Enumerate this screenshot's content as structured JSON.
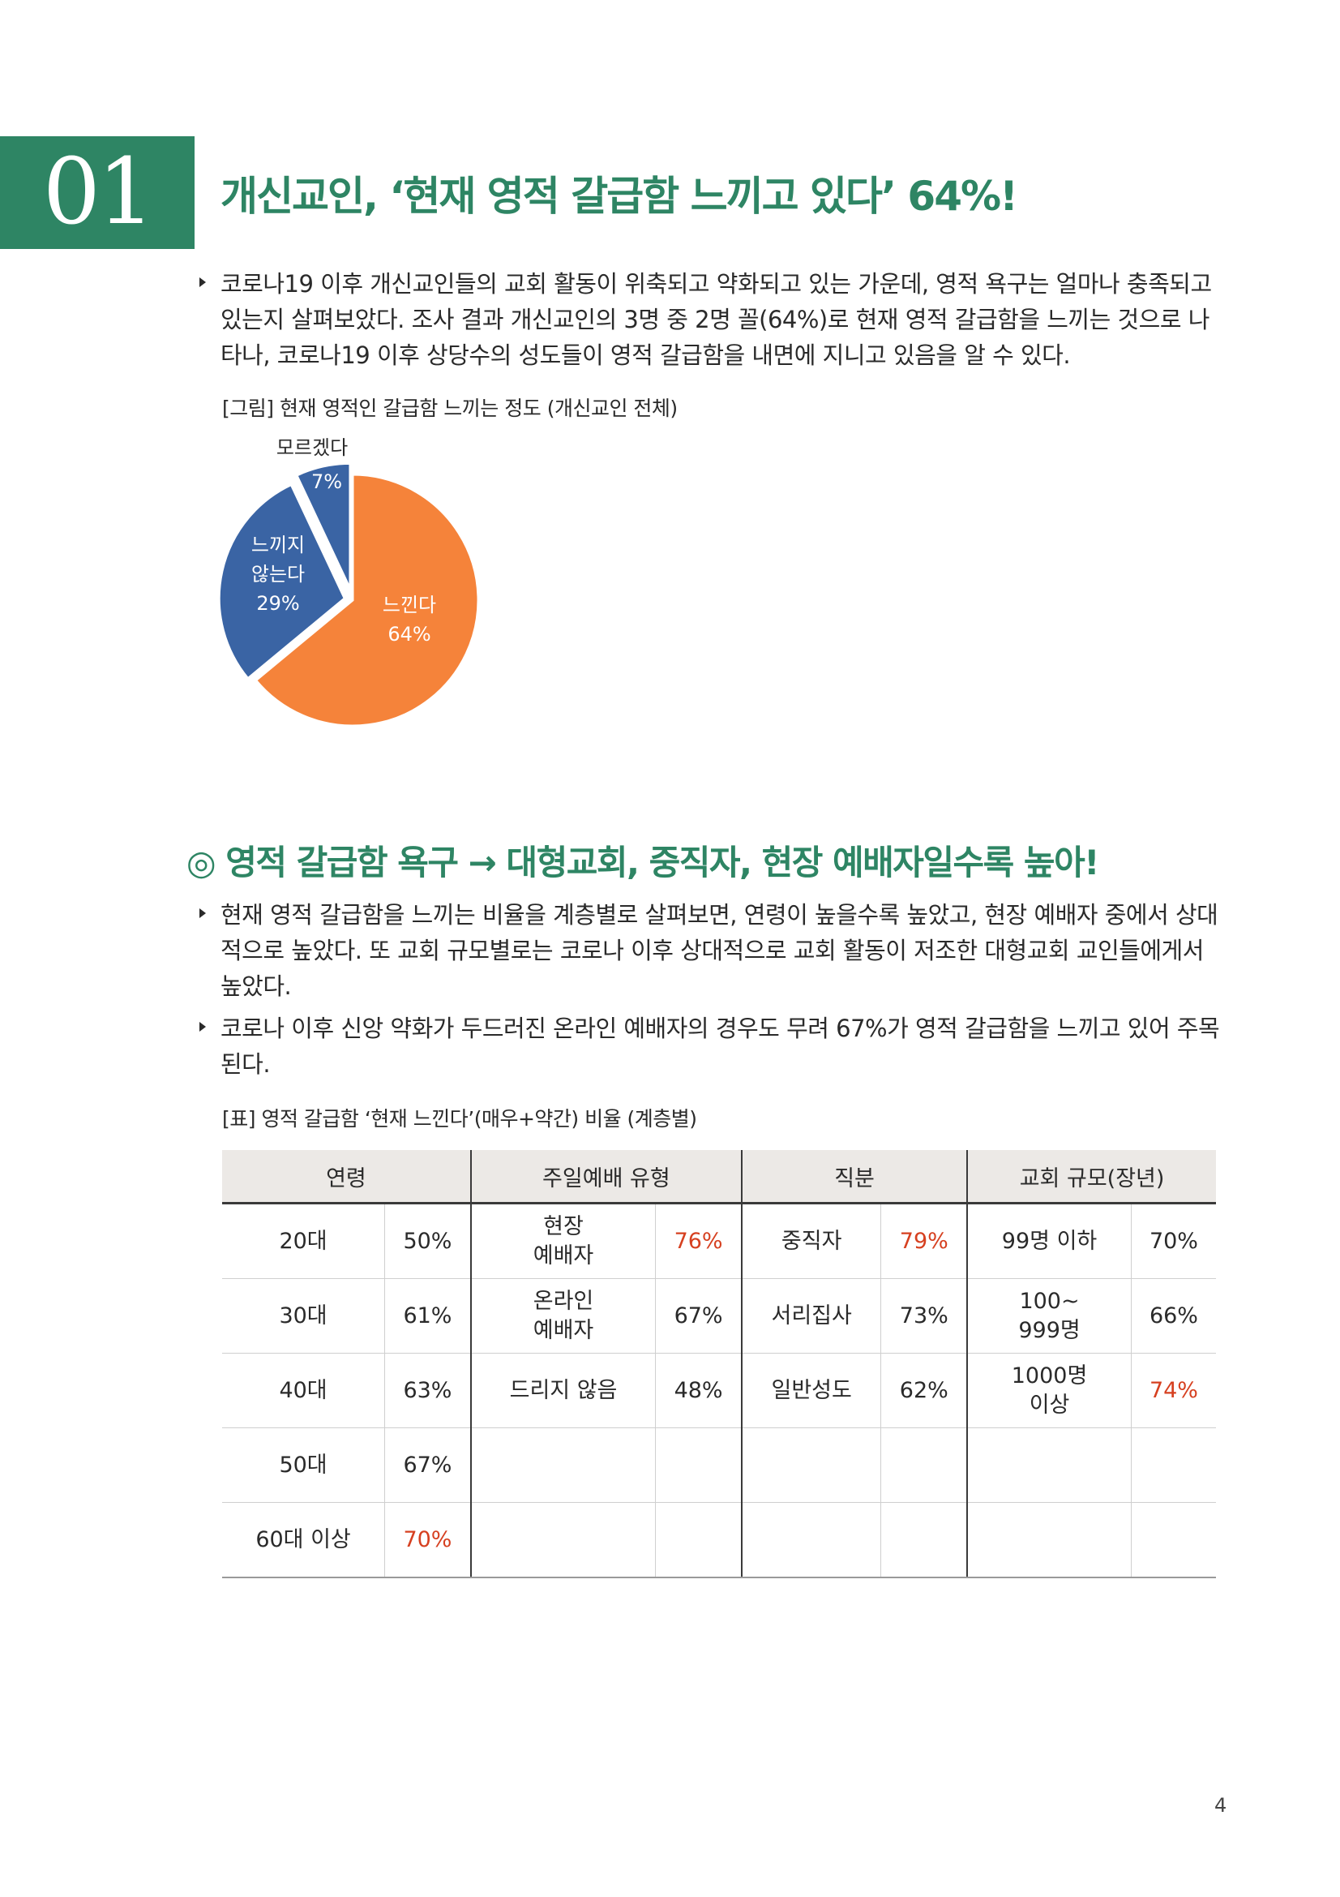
{
  "section": {
    "number": "01",
    "title": "개신교인, ‘현재 영적 갈급함 느끼고 있다’ 64%!"
  },
  "intro_bullet": "코로나19 이후 개신교인들의 교회 활동이 위축되고 약화되고 있는 가운데, 영적 욕구는 얼마나 충족되고 있는지 살펴보았다. 조사 결과 개신교인의 3명 중 2명 꼴(64%)로 현재 영적 갈급함을 느끼는 것으로 나타나, 코로나19 이후 상당수의 성도들이 영적 갈급함을 내면에 지니고 있음을 알 수 있다.",
  "figure_caption": "[그림] 현재 영적인 갈급함 느끼는 정도 (개신교인 전체)",
  "chart_data": {
    "type": "pie",
    "slices": [
      {
        "label": "느낀다",
        "value": 64,
        "value_label": "64%",
        "color": "#f5833a"
      },
      {
        "label_lines": [
          "느끼지",
          "않는다"
        ],
        "value": 29,
        "value_label": "29%",
        "color": "#3a64a4"
      },
      {
        "label": "모르겠다",
        "value": 7,
        "value_label": "7%",
        "color": "#3a64a4"
      }
    ]
  },
  "subsection_title": "◎ 영적 갈급함 욕구 → 대형교회, 중직자, 현장 예배자일수록 높아!",
  "bullets": [
    "현재 영적 갈급함을 느끼는 비율을 계층별로 살펴보면, 연령이 높을수록 높았고, 현장 예배자 중에서 상대적으로 높았다. 또 교회 규모별로는 코로나 이후 상대적으로 교회 활동이 저조한 대형교회 교인들에게서 높았다.",
    "코로나 이후 신앙 약화가 두드러진 온라인 예배자의 경우도 무려 67%가 영적 갈급함을 느끼고 있어 주목된다."
  ],
  "table_caption": "[표] 영적 갈급함 ‘현재 느낀다’(매우+약간) 비율 (계층별)",
  "table": {
    "headers": [
      "연령",
      "주일예배 유형",
      "직분",
      "교회 규모(장년)"
    ],
    "rows": [
      [
        {
          "t": "20대"
        },
        {
          "t": "50%"
        },
        {
          "t": "현장\n예배자"
        },
        {
          "t": "76%",
          "red": true
        },
        {
          "t": "중직자"
        },
        {
          "t": "79%",
          "red": true
        },
        {
          "t": "99명 이하"
        },
        {
          "t": "70%"
        }
      ],
      [
        {
          "t": "30대"
        },
        {
          "t": "61%"
        },
        {
          "t": "온라인\n예배자"
        },
        {
          "t": "67%"
        },
        {
          "t": "서리집사"
        },
        {
          "t": "73%"
        },
        {
          "t": "100~\n999명"
        },
        {
          "t": "66%"
        }
      ],
      [
        {
          "t": "40대"
        },
        {
          "t": "63%"
        },
        {
          "t": "드리지 않음"
        },
        {
          "t": "48%"
        },
        {
          "t": "일반성도"
        },
        {
          "t": "62%"
        },
        {
          "t": "1000명\n이상"
        },
        {
          "t": "74%",
          "red": true
        }
      ],
      [
        {
          "t": "50대"
        },
        {
          "t": "67%"
        },
        {
          "t": ""
        },
        {
          "t": ""
        },
        {
          "t": ""
        },
        {
          "t": ""
        },
        {
          "t": ""
        },
        {
          "t": ""
        }
      ],
      [
        {
          "t": "60대 이상"
        },
        {
          "t": "70%",
          "red": true
        },
        {
          "t": ""
        },
        {
          "t": ""
        },
        {
          "t": ""
        },
        {
          "t": ""
        },
        {
          "t": ""
        },
        {
          "t": ""
        }
      ]
    ]
  },
  "page_number": "4"
}
